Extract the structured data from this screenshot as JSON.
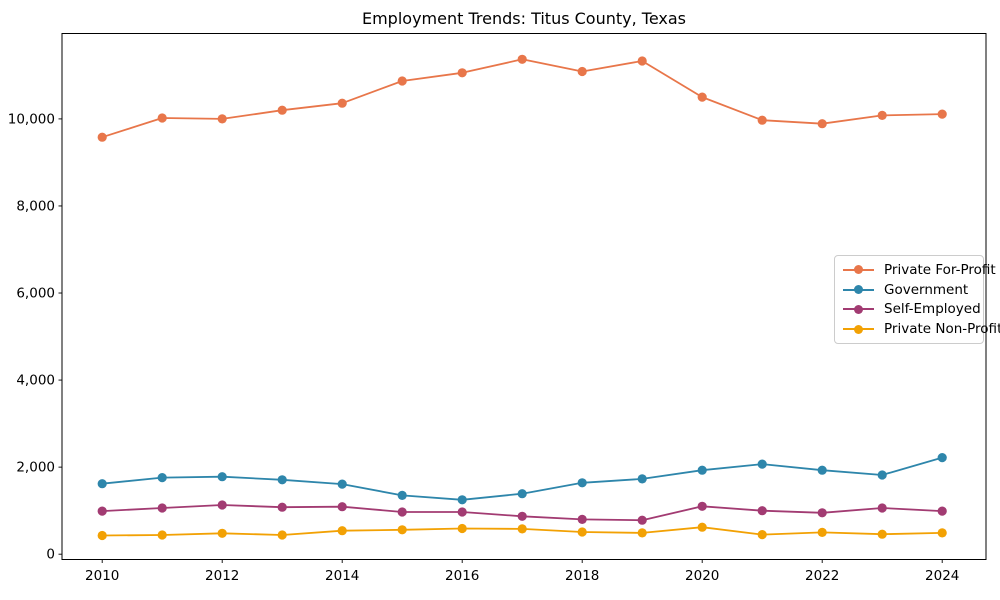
{
  "title": "Employment Trends: Titus County, Texas",
  "chart_data": {
    "type": "line",
    "title": "Employment Trends: Titus County, Texas",
    "x": [
      2010,
      2011,
      2012,
      2013,
      2014,
      2015,
      2016,
      2017,
      2018,
      2019,
      2020,
      2021,
      2022,
      2023,
      2024
    ],
    "series": [
      {
        "name": "Private For-Profit",
        "color": "#E8764A",
        "values": [
          9580,
          10020,
          10000,
          10200,
          10360,
          10870,
          11060,
          11370,
          11090,
          11330,
          10500,
          9970,
          9890,
          10080,
          10110
        ]
      },
      {
        "name": "Government",
        "color": "#2E86AB",
        "values": [
          1620,
          1760,
          1780,
          1710,
          1610,
          1350,
          1250,
          1390,
          1640,
          1730,
          1930,
          2070,
          1930,
          1820,
          2220
        ]
      },
      {
        "name": "Self-Employed",
        "color": "#A23B72",
        "values": [
          990,
          1060,
          1130,
          1080,
          1090,
          970,
          970,
          870,
          800,
          780,
          1100,
          1000,
          950,
          1060,
          990
        ]
      },
      {
        "name": "Private Non-Profit",
        "color": "#F2A104",
        "values": [
          430,
          440,
          480,
          440,
          540,
          560,
          590,
          580,
          510,
          490,
          620,
          450,
          500,
          460,
          490
        ]
      }
    ],
    "xticks": {
      "values": [
        2010,
        2012,
        2014,
        2016,
        2018,
        2020,
        2022,
        2024
      ],
      "labels": [
        "2010",
        "2012",
        "2014",
        "2016",
        "2018",
        "2020",
        "2022",
        "2024"
      ]
    },
    "yticks": {
      "values": [
        0,
        2000,
        4000,
        6000,
        8000,
        10000
      ],
      "labels": [
        "0",
        "2,000",
        "4,000",
        "6,000",
        "8,000",
        "10,000"
      ]
    },
    "xlim": [
      2009.33,
      2024.73
    ],
    "ylim": [
      -122,
      11962
    ],
    "grid": false,
    "xlabel": "",
    "ylabel": "",
    "legend": {
      "position": "center right"
    }
  }
}
